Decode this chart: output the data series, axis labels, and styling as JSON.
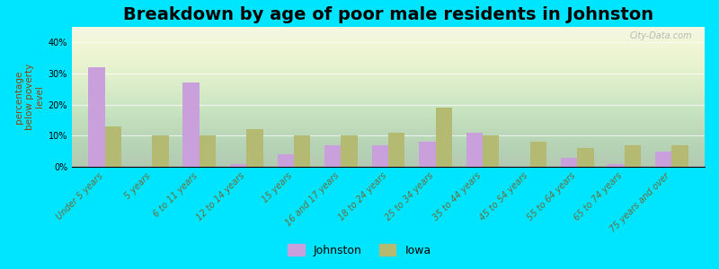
{
  "title": "Breakdown by age of poor male residents in Johnston",
  "ylabel": "percentage\nbelow poverty\nlevel",
  "categories": [
    "Under 5 years",
    "5 years",
    "6 to 11 years",
    "12 to 14 years",
    "15 years",
    "16 and 17 years",
    "18 to 24 years",
    "25 to 34 years",
    "35 to 44 years",
    "45 to 54 years",
    "55 to 64 years",
    "65 to 74 years",
    "75 years and over"
  ],
  "johnston_values": [
    32,
    0,
    27,
    1,
    4,
    7,
    7,
    8,
    11,
    0,
    3,
    1,
    5
  ],
  "iowa_values": [
    13,
    10,
    10,
    12,
    10,
    10,
    11,
    19,
    10,
    8,
    6,
    7,
    7
  ],
  "johnston_color": "#c9a0dc",
  "iowa_color": "#b5ba72",
  "outer_bg_color": "#00e5ff",
  "plot_bg_color": "#f0f5e0",
  "bar_width": 0.35,
  "ylim": [
    0,
    45
  ],
  "yticks": [
    0,
    10,
    20,
    30,
    40
  ],
  "ytick_labels": [
    "0%",
    "10%",
    "20%",
    "30%",
    "40%"
  ],
  "title_fontsize": 14,
  "ylabel_fontsize": 7.5,
  "tick_fontsize": 7,
  "legend_fontsize": 9,
  "watermark": "City-Data.com"
}
